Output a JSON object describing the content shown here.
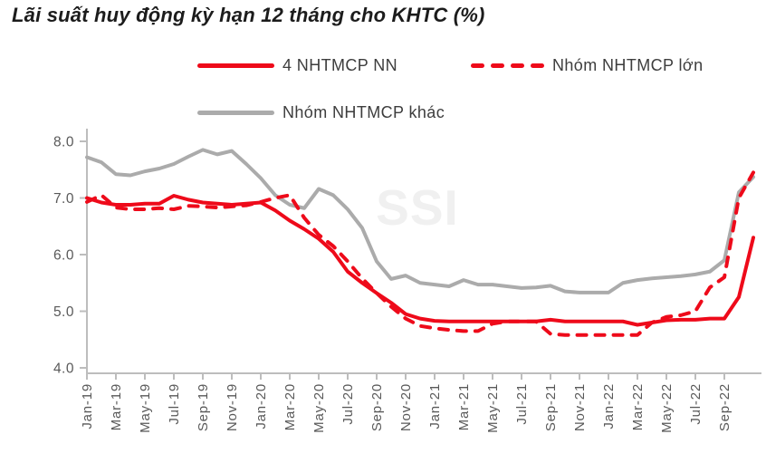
{
  "title": "Lãi suất huy động kỳ hạn 12 tháng cho KHTC (%)",
  "watermark": "SSI",
  "colors": {
    "red": "#ee0a1a",
    "gray": "#ababab",
    "axis_line": "#bdbdbd",
    "tick_text": "#595959",
    "title_text": "#1c1c1c",
    "legend_text": "#3d3d3d",
    "watermark": "#f0f0f0"
  },
  "legend": [
    {
      "id": "4-nhtmcp-nn",
      "label": "4 NHTMCP NN",
      "style": "solid",
      "color": "red"
    },
    {
      "id": "nhom-nhtmcp-lon",
      "label": "Nhóm NHTMCP lớn",
      "style": "dashed",
      "color": "red"
    },
    {
      "id": "nhom-nhtmcp-khac",
      "label": "Nhóm NHTMCP khác",
      "style": "solid",
      "color": "gray"
    }
  ],
  "chart_data": {
    "type": "line",
    "title": "Lãi suất huy động kỳ hạn 12 tháng cho KHTC (%)",
    "xlabel": "",
    "ylabel": "",
    "ylim": [
      4.0,
      8.0
    ],
    "y_ticks": [
      "4.0",
      "5.0",
      "6.0",
      "7.0",
      "8.0"
    ],
    "grid": false,
    "legend_position": "top",
    "x": [
      "Jan-19",
      "Feb-19",
      "Mar-19",
      "Apr-19",
      "May-19",
      "Jun-19",
      "Jul-19",
      "Aug-19",
      "Sep-19",
      "Oct-19",
      "Nov-19",
      "Dec-19",
      "Jan-20",
      "Feb-20",
      "Mar-20",
      "Apr-20",
      "May-20",
      "Jun-20",
      "Jul-20",
      "Aug-20",
      "Sep-20",
      "Oct-20",
      "Nov-20",
      "Dec-20",
      "Jan-21",
      "Feb-21",
      "Mar-21",
      "Apr-21",
      "May-21",
      "Jun-21",
      "Jul-21",
      "Aug-21",
      "Sep-21",
      "Oct-21",
      "Nov-21",
      "Dec-21",
      "Jan-22",
      "Feb-22",
      "Mar-22",
      "Apr-22",
      "May-22",
      "Jun-22",
      "Jul-22",
      "Aug-22",
      "Sep-22",
      "Oct-22",
      "Nov-22"
    ],
    "x_tick_step": 2,
    "x_tick_labels": [
      "Jan-19",
      "Mar-19",
      "May-19",
      "Jul-19",
      "Sep-19",
      "Nov-19",
      "Jan-20",
      "Mar-20",
      "May-20",
      "Jul-20",
      "Sep-20",
      "Nov-20",
      "Jan-21",
      "Mar-21",
      "May-21",
      "Jul-21",
      "Sep-21",
      "Nov-21",
      "Jan-22",
      "Mar-22",
      "May-22",
      "Jul-22",
      "Sep-22"
    ],
    "series": [
      {
        "id": "4-nhtmcp-nn",
        "name": "4 NHTMCP NN",
        "style": "solid",
        "color": "red",
        "values": [
          7.0,
          6.92,
          6.88,
          6.88,
          6.9,
          6.9,
          7.04,
          6.97,
          6.92,
          6.9,
          6.88,
          6.9,
          6.92,
          6.78,
          6.6,
          6.45,
          6.28,
          6.05,
          5.7,
          5.5,
          5.32,
          5.15,
          4.95,
          4.87,
          4.83,
          4.82,
          4.82,
          4.82,
          4.82,
          4.82,
          4.82,
          4.82,
          4.85,
          4.82,
          4.82,
          4.82,
          4.82,
          4.82,
          4.76,
          4.8,
          4.84,
          4.85,
          4.85,
          4.87,
          4.87,
          5.25,
          6.3
        ]
      },
      {
        "id": "nhom-nhtmcp-lon",
        "name": "Nhóm NHTMCP lớn",
        "style": "dashed",
        "color": "red",
        "values": [
          6.93,
          7.05,
          6.83,
          6.8,
          6.8,
          6.82,
          6.8,
          6.86,
          6.85,
          6.83,
          6.85,
          6.87,
          6.93,
          7.0,
          7.05,
          6.65,
          6.35,
          6.15,
          5.88,
          5.58,
          5.32,
          5.08,
          4.87,
          4.74,
          4.7,
          4.67,
          4.65,
          4.65,
          4.78,
          4.82,
          4.82,
          4.82,
          4.6,
          4.58,
          4.58,
          4.58,
          4.58,
          4.58,
          4.58,
          4.8,
          4.9,
          4.93,
          5.0,
          5.42,
          5.6,
          7.0,
          7.45
        ]
      },
      {
        "id": "nhom-nhtmcp-khac",
        "name": "Nhóm NHTMCP khác",
        "style": "solid",
        "color": "gray",
        "values": [
          7.72,
          7.63,
          7.42,
          7.4,
          7.47,
          7.52,
          7.6,
          7.73,
          7.85,
          7.77,
          7.83,
          7.6,
          7.35,
          7.05,
          6.88,
          6.82,
          7.16,
          7.05,
          6.8,
          6.47,
          5.88,
          5.57,
          5.63,
          5.5,
          5.47,
          5.44,
          5.55,
          5.47,
          5.47,
          5.44,
          5.41,
          5.42,
          5.45,
          5.35,
          5.33,
          5.33,
          5.33,
          5.5,
          5.55,
          5.58,
          5.6,
          5.62,
          5.65,
          5.7,
          5.9,
          7.1,
          7.37
        ]
      }
    ]
  }
}
